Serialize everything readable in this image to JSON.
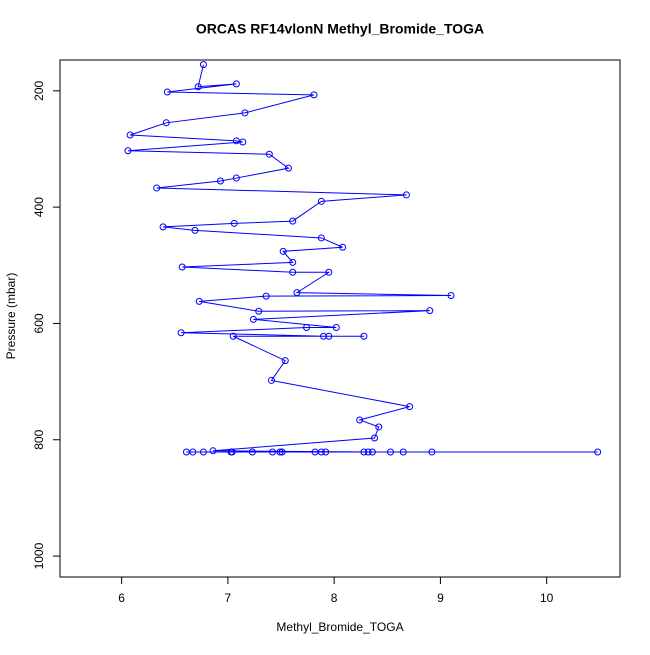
{
  "chart_data": {
    "type": "line",
    "title": "ORCAS RF14vlonN Methyl_Bromide_TOGA",
    "x_label": "Methyl_Bromide_TOGA",
    "y_label": "Pressure (mbar)",
    "color": "#0000ff",
    "markers": true,
    "x": [
      6.77,
      6.72,
      7.08,
      6.43,
      7.81,
      7.16,
      6.42,
      6.08,
      7.08,
      7.14,
      6.06,
      7.39,
      7.57,
      7.08,
      6.93,
      6.33,
      8.68,
      7.88,
      7.61,
      7.06,
      6.39,
      6.69,
      7.88,
      8.08,
      7.52,
      7.61,
      6.57,
      7.61,
      7.95,
      7.65,
      9.1,
      7.36,
      6.73,
      7.29,
      8.9,
      7.24,
      8.02,
      7.74,
      6.56,
      7.9,
      7.95,
      8.28,
      7.05,
      7.54,
      7.41,
      8.71,
      8.24,
      8.42,
      8.38,
      6.86,
      8.36,
      6.61,
      8.92,
      6.67,
      10.48,
      6.77,
      8.65,
      7.03,
      8.53,
      7.04,
      8.32,
      7.23,
      8.28,
      7.42,
      7.92,
      7.49,
      7.88,
      7.51,
      7.82
    ],
    "values": [
      155,
      193,
      188,
      202,
      207,
      238,
      255,
      276,
      286,
      288,
      303,
      309,
      333,
      350,
      355,
      367,
      379,
      390,
      424,
      428,
      434,
      440,
      453,
      469,
      476,
      495,
      503,
      512,
      512,
      547,
      552,
      553,
      562,
      579,
      578,
      593,
      607,
      607,
      616,
      622,
      622,
      622,
      622,
      664,
      698,
      743,
      766,
      778,
      797,
      819,
      821,
      821,
      821,
      821,
      821,
      821,
      821,
      821,
      821,
      821,
      821,
      821,
      821,
      821,
      821,
      821,
      821,
      821,
      821
    ],
    "xlim": [
      5.42,
      10.69
    ],
    "ylim": [
      1036,
      147
    ],
    "xticks": [
      6,
      7,
      8,
      9,
      10
    ],
    "yticks": [
      200,
      400,
      600,
      800,
      1000
    ]
  }
}
